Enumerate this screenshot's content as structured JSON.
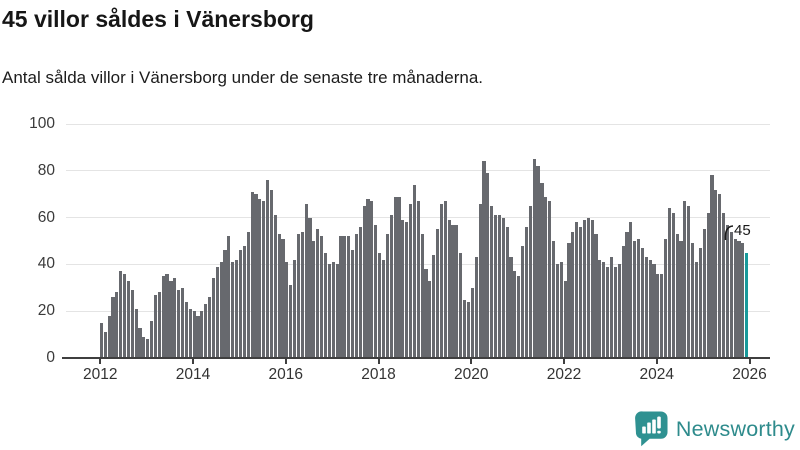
{
  "header": {
    "title": "45 villor såldes i Vänersborg",
    "subtitle": "Antal sålda villor i Vänersborg under de senaste tre månaderna."
  },
  "chart_data": {
    "type": "bar",
    "title": "45 villor såldes i Vänersborg",
    "subtitle": "Antal sålda villor i Vänersborg under de senaste tre månaderna.",
    "x_period": {
      "from": "2012-01",
      "to": "2025-12",
      "interval": "month"
    },
    "x_tick_labels": [
      "2012",
      "2014",
      "2016",
      "2018",
      "2020",
      "2022",
      "2024",
      "2026"
    ],
    "yticks": [
      0,
      20,
      40,
      60,
      80,
      100
    ],
    "ylim": [
      0,
      100
    ],
    "grid": true,
    "bar_color": "#67696e",
    "series": [
      {
        "name": "Antal sålda villor",
        "values": [
          15,
          11,
          18,
          26,
          28,
          37,
          36,
          33,
          29,
          21,
          13,
          9,
          8,
          16,
          27,
          28,
          35,
          36,
          33,
          34,
          29,
          30,
          24,
          21,
          20,
          18,
          20,
          23,
          26,
          34,
          39,
          41,
          46,
          52,
          41,
          42,
          46,
          48,
          54,
          71,
          70,
          68,
          67,
          76,
          72,
          61,
          53,
          51,
          41,
          31,
          42,
          53,
          54,
          66,
          60,
          50,
          55,
          52,
          45,
          40,
          41,
          40,
          52,
          52,
          52,
          46,
          53,
          56,
          65,
          68,
          67,
          57,
          45,
          42,
          53,
          61,
          69,
          69,
          59,
          58,
          66,
          74,
          67,
          53,
          38,
          33,
          44,
          55,
          66,
          67,
          59,
          57,
          57,
          45,
          25,
          24,
          30,
          43,
          66,
          84,
          79,
          65,
          61,
          61,
          60,
          56,
          43,
          37,
          35,
          48,
          56,
          65,
          85,
          82,
          75,
          69,
          67,
          50,
          40,
          41,
          33,
          49,
          54,
          58,
          56,
          59,
          60,
          59,
          53,
          42,
          41,
          39,
          43,
          39,
          40,
          48,
          54,
          58,
          50,
          51,
          47,
          43,
          42,
          40,
          36,
          36,
          51,
          64,
          62,
          53,
          50,
          67,
          65,
          49,
          41,
          47,
          55,
          62,
          78,
          72,
          70,
          62,
          57,
          54,
          51,
          50,
          49,
          45
        ]
      }
    ],
    "highlight": {
      "index": 167,
      "value": 45,
      "label": "45",
      "color": "#189a9b"
    }
  },
  "annotation": {
    "label": "45"
  },
  "logo": {
    "text": "Newsworthy"
  },
  "colors": {
    "bar_gray": "#67696e",
    "bar_teal": "#189a9b",
    "axis": "#3f3f3f",
    "gridline": "#e4e4e4",
    "text": "#1a1a1a",
    "logo_teal": "#2f9191"
  }
}
